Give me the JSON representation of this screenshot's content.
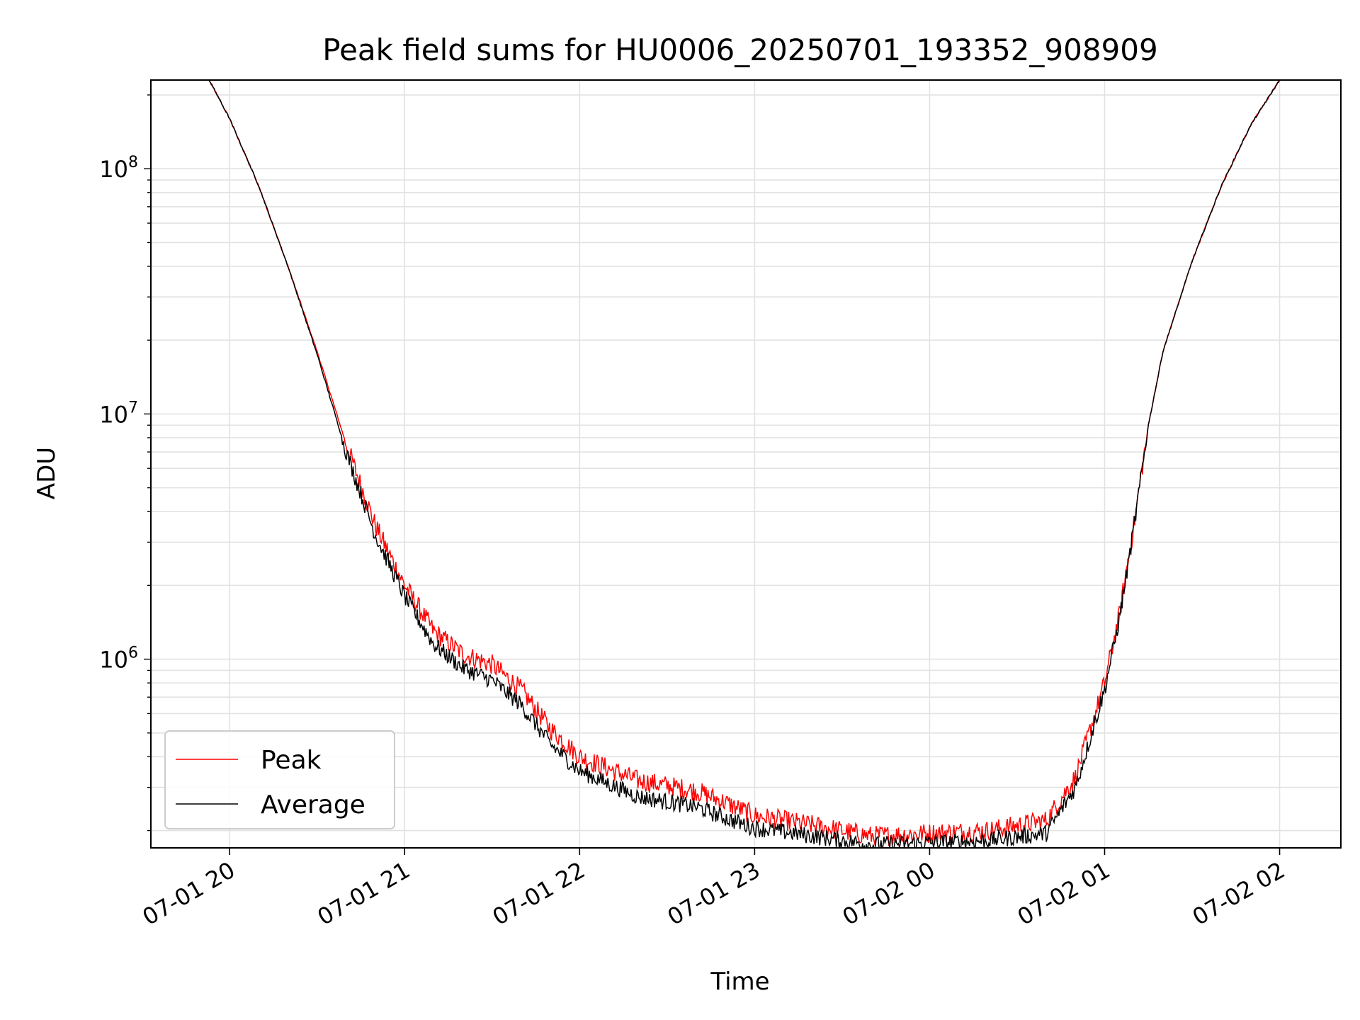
{
  "chart_data": {
    "type": "line",
    "title": "Peak field sums for HU0006_20250701_193352_908909",
    "xlabel": "Time",
    "ylabel": "ADU",
    "x_scale": "time",
    "y_scale": "log",
    "xlim": [
      "2025-07-01 19:33",
      "2025-07-02 02:21"
    ],
    "ylim": [
      170000,
      230000000
    ],
    "grid": true,
    "legend_position": "lower-left",
    "x_ticks": [
      "07-01 20",
      "07-01 21",
      "07-01 22",
      "07-01 23",
      "07-02 00",
      "07-02 01",
      "07-02 02"
    ],
    "y_ticks": [
      {
        "base": "10",
        "exp": "6",
        "value": 1000000
      },
      {
        "base": "10",
        "exp": "7",
        "value": 10000000
      },
      {
        "base": "10",
        "exp": "8",
        "value": 100000000
      }
    ],
    "x": [
      "2025-07-01 19:53",
      "2025-07-01 20:00",
      "2025-07-01 20:10",
      "2025-07-01 20:20",
      "2025-07-01 20:30",
      "2025-07-01 20:40",
      "2025-07-01 20:50",
      "2025-07-01 21:00",
      "2025-07-01 21:10",
      "2025-07-01 21:20",
      "2025-07-01 21:30",
      "2025-07-01 21:40",
      "2025-07-01 21:50",
      "2025-07-01 22:00",
      "2025-07-01 22:20",
      "2025-07-01 22:40",
      "2025-07-01 22:50",
      "2025-07-01 23:00",
      "2025-07-01 23:20",
      "2025-07-01 23:40",
      "2025-07-02 00:00",
      "2025-07-02 00:20",
      "2025-07-02 00:40",
      "2025-07-02 00:50",
      "2025-07-02 01:00",
      "2025-07-02 01:05",
      "2025-07-02 01:10",
      "2025-07-02 01:15",
      "2025-07-02 01:20",
      "2025-07-02 01:30",
      "2025-07-02 01:40",
      "2025-07-02 01:50",
      "2025-07-02 02:00"
    ],
    "series": [
      {
        "name": "Peak",
        "color": "#ff0000",
        "values": [
          230000000,
          160000000,
          85000000,
          40000000,
          18000000,
          7500000,
          3500000,
          2000000,
          1300000,
          1050000,
          950000,
          750000,
          520000,
          400000,
          320000,
          290000,
          260000,
          230000,
          210000,
          190000,
          195000,
          200000,
          220000,
          330000,
          800000,
          1500000,
          3500000,
          9000000,
          18000000,
          42000000,
          85000000,
          150000000,
          230000000
        ]
      },
      {
        "name": "Average",
        "color": "#000000",
        "values": [
          230000000,
          160000000,
          85000000,
          40000000,
          17500000,
          7000000,
          3200000,
          1800000,
          1150000,
          920000,
          820000,
          650000,
          450000,
          350000,
          275000,
          250000,
          225000,
          205000,
          190000,
          175000,
          178000,
          182000,
          195000,
          300000,
          750000,
          1450000,
          3400000,
          9000000,
          18000000,
          42000000,
          85000000,
          150000000,
          230000000
        ]
      }
    ]
  }
}
